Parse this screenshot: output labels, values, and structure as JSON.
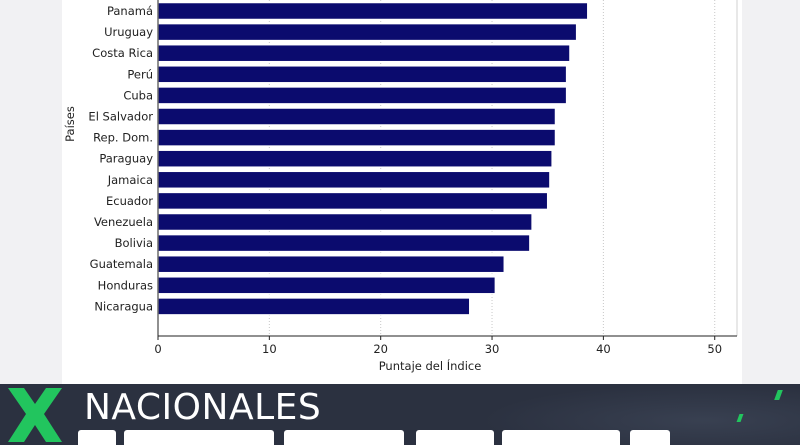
{
  "chart_data": {
    "type": "bar",
    "orientation": "horizontal",
    "categories": [
      "Panamá",
      "Uruguay",
      "Costa Rica",
      "Perú",
      "Cuba",
      "El Salvador",
      "Rep. Dom.",
      "Paraguay",
      "Jamaica",
      "Ecuador",
      "Venezuela",
      "Bolivia",
      "Guatemala",
      "Honduras",
      "Nicaragua"
    ],
    "values": [
      38.6,
      37.6,
      37.0,
      36.7,
      36.7,
      35.7,
      35.7,
      35.4,
      35.2,
      35.0,
      33.6,
      33.4,
      31.1,
      30.3,
      28.0
    ],
    "xlabel": "Puntaje del Índice",
    "ylabel": "Países",
    "xlim": [
      0,
      52
    ],
    "xticks": [
      "0",
      "10",
      "20",
      "30",
      "40",
      "50"
    ],
    "grid": true,
    "colors": {
      "bar": "#0b0b6e",
      "bar_edge": "#ffffff",
      "grid": "#c8c8c8",
      "axis": "#222222"
    }
  },
  "banner": {
    "section": "NACIONALES",
    "colors": {
      "background": "#2b3140",
      "accent": "#22c55e",
      "text": "#ffffff"
    },
    "logo_icon": "x-logo-icon"
  }
}
